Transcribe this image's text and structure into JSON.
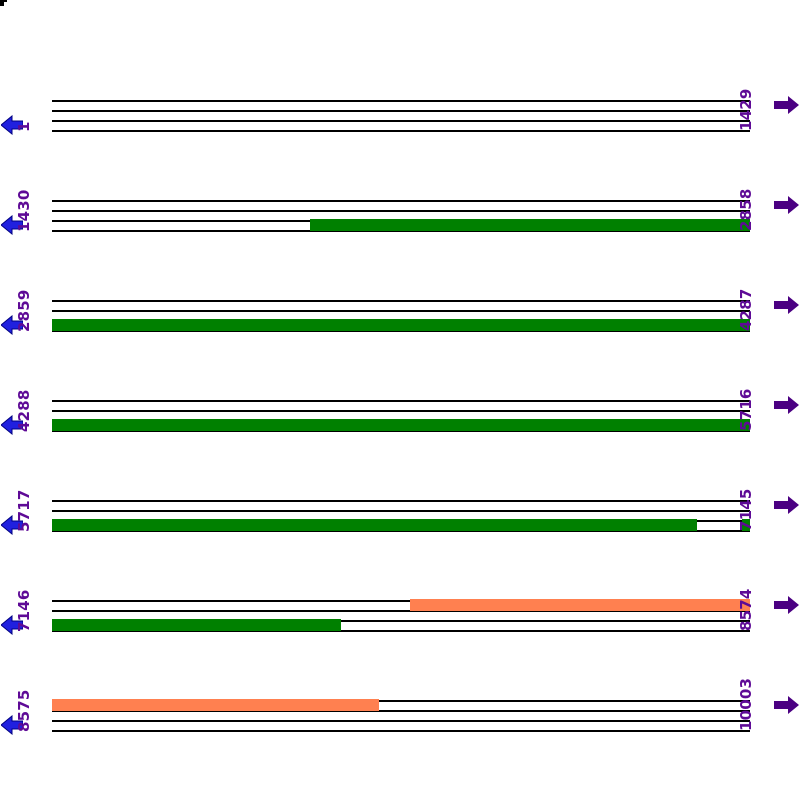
{
  "map": {
    "rows": [
      {
        "start_label": "1",
        "end_label": "1429",
        "segments": []
      },
      {
        "start_label": "1430",
        "end_label": "2858",
        "segments": [
          {
            "band": "bottom",
            "color": "green",
            "from": 0.37,
            "to": 1.0
          }
        ]
      },
      {
        "start_label": "2859",
        "end_label": "4287",
        "segments": [
          {
            "band": "bottom",
            "color": "green",
            "from": 0.0,
            "to": 1.0
          }
        ]
      },
      {
        "start_label": "4288",
        "end_label": "5716",
        "segments": [
          {
            "band": "bottom",
            "color": "green",
            "from": 0.0,
            "to": 1.0
          }
        ]
      },
      {
        "start_label": "5717",
        "end_label": "7145",
        "segments": [
          {
            "band": "bottom",
            "color": "green",
            "from": 0.0,
            "to": 0.924
          },
          {
            "band": "bottom",
            "color": "green",
            "from": 0.988,
            "to": 1.0
          }
        ]
      },
      {
        "start_label": "7146",
        "end_label": "8574",
        "segments": [
          {
            "band": "top",
            "color": "orange",
            "from": 0.513,
            "to": 1.0
          },
          {
            "band": "bottom",
            "color": "green",
            "from": 0.0,
            "to": 0.414
          }
        ]
      },
      {
        "start_label": "8575",
        "end_label": "10003",
        "segments": [
          {
            "band": "top",
            "color": "orange",
            "from": 0.0,
            "to": 0.468
          }
        ]
      }
    ],
    "colors": {
      "green": "#008000",
      "orange": "#FF8050",
      "left_arrow": "#2020DF",
      "left_arrow_edge": "#000080",
      "right_arrow": "#4B0082",
      "label_text": "#5E0A96",
      "line": "#000000"
    }
  }
}
